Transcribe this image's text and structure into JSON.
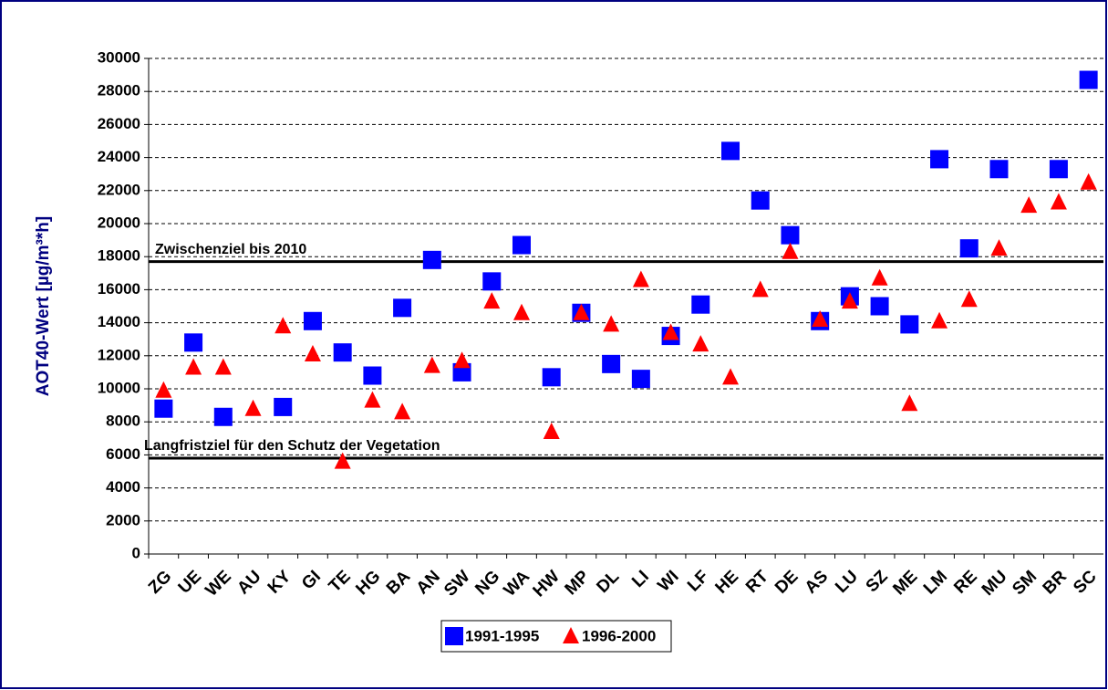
{
  "chart_data": {
    "type": "scatter",
    "y_label": "AOT40-Wert [µg/m³*h]",
    "categories": [
      "ZG",
      "UE",
      "WE",
      "AU",
      "KY",
      "GI",
      "TE",
      "HG",
      "BA",
      "AN",
      "SW",
      "NG",
      "WA",
      "HW",
      "MP",
      "DL",
      "LI",
      "WI",
      "LF",
      "HE",
      "RT",
      "DE",
      "AS",
      "LU",
      "SZ",
      "ME",
      "LM",
      "RE",
      "MU",
      "SM",
      "BR",
      "SC"
    ],
    "series": [
      {
        "name": "1991-1995",
        "color": "#0000ff",
        "marker": "square",
        "values": [
          8800,
          12800,
          8300,
          null,
          8900,
          14100,
          12200,
          10800,
          14900,
          17800,
          11000,
          16500,
          18700,
          10700,
          14600,
          11500,
          10600,
          13200,
          15100,
          24400,
          21400,
          19300,
          14100,
          15600,
          15000,
          13900,
          23900,
          18500,
          23300,
          null,
          23300,
          28700
        ]
      },
      {
        "name": "1996-2000",
        "color": "#ff0000",
        "marker": "triangle",
        "values": [
          9900,
          11300,
          11300,
          8800,
          13800,
          12100,
          5600,
          9300,
          8600,
          11400,
          11700,
          15300,
          14600,
          7400,
          14600,
          13900,
          16600,
          13400,
          12700,
          10700,
          16000,
          18300,
          14200,
          15300,
          16700,
          9100,
          14100,
          15400,
          18500,
          21100,
          21300,
          22500
        ]
      }
    ],
    "reference_lines": [
      {
        "value": 17700,
        "label": "Zwischenziel bis 2010"
      },
      {
        "value": 5800,
        "label": "Langfristziel für den Schutz der Vegetation"
      }
    ],
    "ylim": [
      0,
      30000
    ],
    "yticks": [
      0,
      2000,
      4000,
      6000,
      8000,
      10000,
      12000,
      14000,
      16000,
      18000,
      20000,
      22000,
      24000,
      26000,
      28000,
      30000
    ],
    "grid": true,
    "legend": "bottom"
  }
}
